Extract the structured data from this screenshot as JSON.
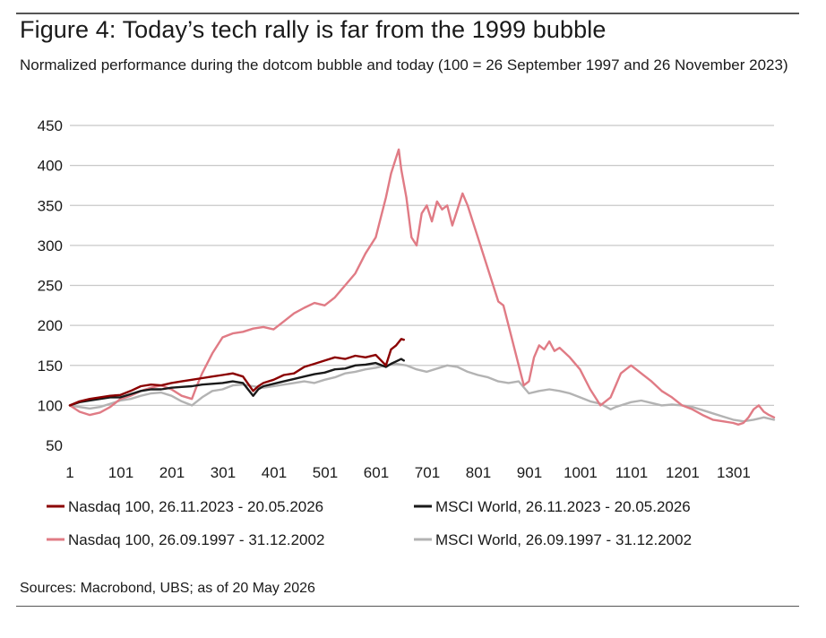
{
  "header": {
    "title": "Figure 4: Today’s tech rally is far from the 1999 bubble",
    "subtitle": "Normalized performance during the dotcom bubble and today (100 = 26 September 1997 and 26 November 2023)"
  },
  "footer": {
    "source": "Sources: Macrobond, UBS; as of 20 May 2026"
  },
  "chart_data": {
    "type": "line",
    "title": "Figure 4: Today’s tech rally is far from the 1999 bubble",
    "subtitle": "Normalized performance during the dotcom bubble and today (100 = 26 September 1997 and 26 November 2023)",
    "xlabel": "",
    "ylabel": "",
    "xlim": [
      1,
      1380
    ],
    "ylim": [
      50,
      450
    ],
    "xticks": [
      1,
      101,
      201,
      301,
      401,
      501,
      601,
      701,
      801,
      901,
      1001,
      1101,
      1201,
      1301
    ],
    "yticks": [
      50,
      100,
      150,
      200,
      250,
      300,
      350,
      400,
      450
    ],
    "grid": "horizontal",
    "legend_position": "bottom",
    "series": [
      {
        "name": "Nasdaq 100, 26.11.2023 - 20.05.2026",
        "color": "#8b0000",
        "x": [
          1,
          20,
          40,
          60,
          80,
          100,
          120,
          140,
          160,
          180,
          200,
          220,
          240,
          260,
          280,
          300,
          320,
          340,
          360,
          370,
          380,
          400,
          420,
          440,
          460,
          480,
          500,
          520,
          540,
          560,
          580,
          600,
          620,
          630,
          640,
          650,
          655
        ],
        "y": [
          100,
          105,
          108,
          110,
          112,
          113,
          118,
          124,
          126,
          125,
          128,
          130,
          132,
          134,
          136,
          138,
          140,
          136,
          118,
          124,
          128,
          132,
          138,
          140,
          148,
          152,
          156,
          160,
          158,
          162,
          160,
          163,
          150,
          170,
          175,
          183,
          182
        ]
      },
      {
        "name": "MSCI World, 26.11.2023 - 20.05.2026",
        "color": "#1a1a1a",
        "x": [
          1,
          20,
          40,
          60,
          80,
          100,
          120,
          140,
          160,
          180,
          200,
          220,
          240,
          260,
          280,
          300,
          320,
          340,
          360,
          370,
          380,
          400,
          420,
          440,
          460,
          480,
          500,
          520,
          540,
          560,
          580,
          600,
          620,
          630,
          640,
          650,
          655
        ],
        "y": [
          100,
          104,
          106,
          108,
          110,
          110,
          114,
          118,
          120,
          120,
          122,
          123,
          124,
          126,
          127,
          128,
          130,
          128,
          112,
          120,
          124,
          127,
          130,
          133,
          136,
          139,
          141,
          145,
          146,
          150,
          151,
          153,
          148,
          152,
          155,
          158,
          156
        ]
      },
      {
        "name": "Nasdaq 100, 26.09.1997 - 31.12.2002",
        "color": "#e07b85",
        "x": [
          1,
          20,
          40,
          60,
          80,
          100,
          120,
          140,
          160,
          180,
          200,
          220,
          240,
          250,
          260,
          280,
          300,
          320,
          340,
          360,
          380,
          400,
          420,
          440,
          460,
          480,
          500,
          520,
          540,
          560,
          580,
          600,
          610,
          620,
          630,
          640,
          645,
          650,
          660,
          670,
          680,
          690,
          700,
          710,
          720,
          730,
          740,
          750,
          760,
          770,
          780,
          790,
          800,
          810,
          820,
          830,
          840,
          850,
          860,
          870,
          880,
          890,
          900,
          910,
          920,
          930,
          940,
          950,
          960,
          980,
          1000,
          1020,
          1040,
          1060,
          1070,
          1080,
          1090,
          1100,
          1110,
          1120,
          1140,
          1160,
          1180,
          1200,
          1220,
          1240,
          1260,
          1280,
          1300,
          1310,
          1320,
          1330,
          1340,
          1350,
          1360,
          1370,
          1380
        ],
        "y": [
          100,
          92,
          88,
          91,
          98,
          108,
          112,
          118,
          122,
          125,
          120,
          112,
          108,
          125,
          140,
          165,
          185,
          190,
          192,
          196,
          198,
          195,
          205,
          215,
          222,
          228,
          225,
          235,
          250,
          265,
          290,
          310,
          335,
          360,
          390,
          410,
          420,
          395,
          360,
          310,
          300,
          340,
          350,
          330,
          355,
          345,
          350,
          325,
          345,
          365,
          350,
          330,
          310,
          290,
          270,
          250,
          230,
          225,
          200,
          175,
          150,
          125,
          130,
          160,
          175,
          170,
          180,
          168,
          172,
          160,
          145,
          120,
          100,
          110,
          125,
          140,
          145,
          150,
          145,
          140,
          130,
          118,
          110,
          100,
          95,
          88,
          82,
          80,
          78,
          76,
          78,
          85,
          95,
          100,
          92,
          88,
          85
        ]
      },
      {
        "name": "MSCI World, 26.09.1997 - 31.12.2002",
        "color": "#b3b3b3",
        "x": [
          1,
          20,
          40,
          60,
          80,
          100,
          120,
          140,
          160,
          180,
          200,
          220,
          240,
          260,
          280,
          300,
          320,
          340,
          360,
          380,
          400,
          420,
          440,
          460,
          480,
          500,
          520,
          540,
          560,
          580,
          600,
          620,
          640,
          660,
          680,
          700,
          720,
          740,
          760,
          780,
          800,
          820,
          840,
          860,
          880,
          900,
          920,
          940,
          960,
          980,
          1000,
          1020,
          1040,
          1060,
          1070,
          1080,
          1100,
          1120,
          1140,
          1160,
          1180,
          1200,
          1220,
          1240,
          1260,
          1280,
          1300,
          1320,
          1340,
          1360,
          1380
        ],
        "y": [
          100,
          98,
          96,
          98,
          102,
          106,
          108,
          112,
          115,
          116,
          112,
          105,
          100,
          110,
          118,
          120,
          125,
          126,
          124,
          122,
          124,
          126,
          128,
          130,
          128,
          132,
          135,
          140,
          142,
          145,
          147,
          150,
          152,
          150,
          145,
          142,
          146,
          150,
          148,
          142,
          138,
          135,
          130,
          128,
          130,
          115,
          118,
          120,
          118,
          115,
          110,
          105,
          102,
          95,
          98,
          100,
          104,
          106,
          103,
          100,
          101,
          100,
          98,
          94,
          90,
          86,
          82,
          80,
          82,
          85,
          82
        ]
      }
    ]
  }
}
